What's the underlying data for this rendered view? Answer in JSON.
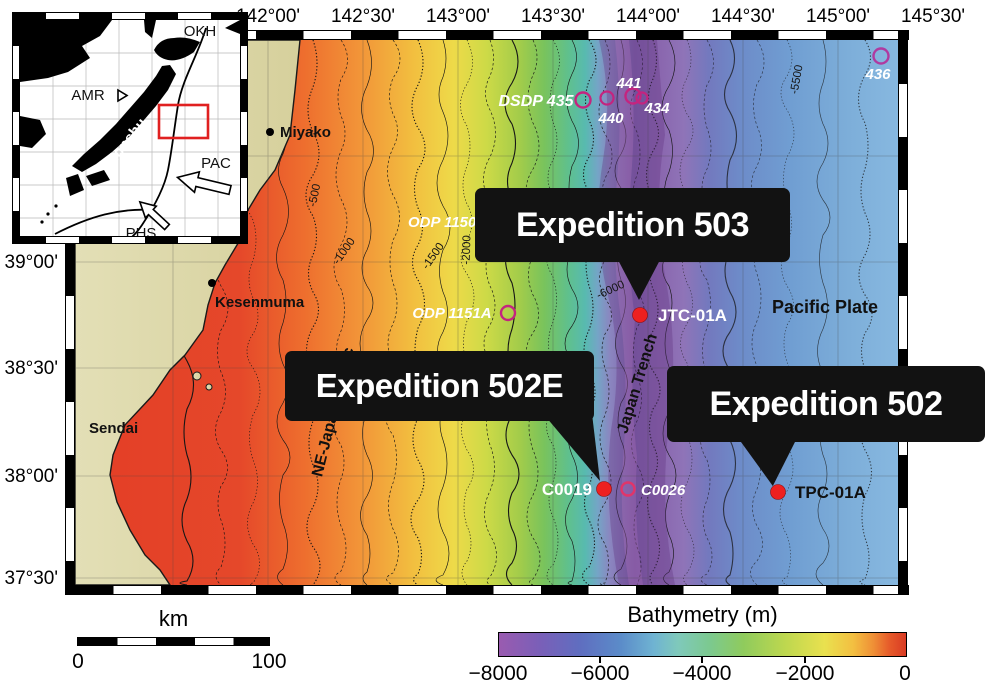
{
  "inset": {
    "labels": {
      "okh": "OKH",
      "amr": "AMR",
      "honshu": "Honshu",
      "pac": "PAC",
      "phs": "PHS"
    }
  },
  "axes": {
    "top": [
      "142°00'",
      "142°30'",
      "143°00'",
      "143°30'",
      "144°00'",
      "144°30'",
      "145°00'",
      "145°30'"
    ],
    "left": [
      "39°00'",
      "38°30'",
      "38°00'",
      "37°30'"
    ]
  },
  "callouts": {
    "exp503": "Expedition 503",
    "exp502e": "Expedition 502E",
    "exp502": "Expedition 502"
  },
  "map_labels": {
    "pacific_plate": "Pacific Plate",
    "japan_trench": "Japan Trench",
    "ne_japan": "NE-Japan forearc",
    "cities": {
      "miyako": "Miyako",
      "kesenmuma": "Kesenmuma",
      "sendai": "Sendai"
    },
    "contours": {
      "c500": "-500",
      "c1000": "-1000",
      "c1500": "-1500",
      "c2000": "-2000",
      "c6000": "-6000",
      "c5500": "-5500"
    }
  },
  "sites": {
    "dsdp435": "DSDP 435",
    "s441": "441",
    "s440": "440",
    "s434": "434",
    "s436": "436",
    "odp1150": "ODP 1150",
    "odp1151a": "ODP 1151A",
    "jtc01a": "JTC-01A",
    "c0019": "C0019",
    "c0026": "C0026",
    "tpc01a": "TPC-01A"
  },
  "scale_bar": {
    "unit": "km",
    "min": "0",
    "max": "100"
  },
  "colorbar": {
    "title": "Bathymetry (m)",
    "ticks": [
      "−8000",
      "−6000",
      "−4000",
      "−2000",
      "0"
    ]
  },
  "colors": {
    "red_dot": "#ee2020",
    "site_circle": "#c4247f",
    "callout_bg": "#121212",
    "land": "#d9d4a4",
    "inset_box": "#e02020"
  }
}
